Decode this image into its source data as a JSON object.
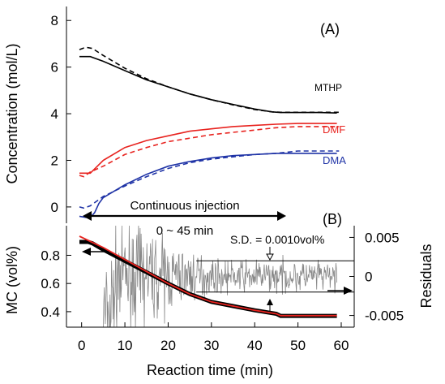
{
  "chart_data": [
    {
      "panel_label": "(A)",
      "type": "line",
      "ylabel": "Concentration (mol/L)",
      "ylim": [
        -0.7,
        8.6
      ],
      "xlim": [
        -3.5,
        63
      ],
      "yticks": [
        0,
        2,
        4,
        6,
        8
      ],
      "colors": {
        "MTHP": "#000000",
        "DMF": "#e8231f",
        "DMA": "#1f33a6"
      },
      "series": [
        {
          "name": "MTHP",
          "style": "solid",
          "x": [
            -0.5,
            2,
            5,
            10,
            15,
            20,
            25,
            30,
            35,
            40,
            44,
            46,
            50,
            55,
            59
          ],
          "y": [
            6.45,
            6.45,
            6.25,
            5.85,
            5.45,
            5.15,
            4.85,
            4.6,
            4.4,
            4.2,
            4.08,
            4.05,
            4.05,
            4.05,
            4.03
          ]
        },
        {
          "name": "MTHP",
          "style": "dashed",
          "x": [
            -0.5,
            1,
            2.5,
            5,
            10,
            15,
            20,
            25,
            30,
            35,
            40,
            44,
            46,
            50,
            55,
            59.5
          ],
          "y": [
            6.75,
            6.85,
            6.8,
            6.5,
            5.95,
            5.5,
            5.15,
            4.85,
            4.6,
            4.38,
            4.18,
            4.08,
            4.06,
            4.06,
            4.06,
            4.06
          ]
        },
        {
          "name": "DMF",
          "style": "solid",
          "x": [
            -0.5,
            2,
            5,
            10,
            15,
            20,
            25,
            30,
            35,
            40,
            45,
            50,
            55,
            59
          ],
          "y": [
            1.45,
            1.45,
            2.0,
            2.55,
            2.85,
            3.05,
            3.25,
            3.35,
            3.45,
            3.5,
            3.55,
            3.58,
            3.58,
            3.58
          ]
        },
        {
          "name": "DMF",
          "style": "dashed",
          "x": [
            -0.5,
            0.5,
            2,
            5,
            10,
            15,
            20,
            25,
            30,
            35,
            40,
            45,
            50,
            55,
            59.5
          ],
          "y": [
            1.35,
            1.3,
            1.5,
            1.75,
            2.25,
            2.55,
            2.8,
            2.95,
            3.1,
            3.2,
            3.3,
            3.4,
            3.45,
            3.45,
            3.45
          ]
        },
        {
          "name": "DMA",
          "style": "solid",
          "x": [
            -0.5,
            1,
            2,
            3,
            4,
            5,
            10,
            15,
            20,
            25,
            30,
            35,
            40,
            45,
            50,
            55,
            59
          ],
          "y": [
            -0.4,
            -0.45,
            -0.45,
            -0.25,
            0.15,
            0.4,
            0.95,
            1.4,
            1.75,
            1.95,
            2.1,
            2.2,
            2.25,
            2.3,
            2.3,
            2.3,
            2.3
          ]
        },
        {
          "name": "DMA",
          "style": "dashed",
          "x": [
            -0.5,
            0.5,
            2,
            5,
            10,
            15,
            20,
            25,
            30,
            35,
            40,
            45,
            50,
            55,
            59.5
          ],
          "y": [
            0.0,
            -0.05,
            0.05,
            0.45,
            0.9,
            1.3,
            1.65,
            1.9,
            2.05,
            2.15,
            2.25,
            2.3,
            2.4,
            2.4,
            2.4
          ]
        }
      ],
      "annotations": [
        "Continuous injection",
        "0 ~ 45 min"
      ],
      "injection_interval": [
        0,
        45
      ]
    },
    {
      "panel_label": "(B)",
      "type": "line",
      "xlabel": "Reaction time (min)",
      "ylabel": "MC (vol%)",
      "ylabel_right": "Residuals",
      "xlim": [
        -3.5,
        63
      ],
      "ylim": [
        0.29,
        1.01
      ],
      "yticks": [
        0.4,
        0.6,
        0.8
      ],
      "xticks": [
        0,
        10,
        20,
        30,
        40,
        50,
        60
      ],
      "ylim_right": [
        -0.0065,
        0.0065
      ],
      "yticks_right": [
        -0.005,
        0,
        0.005
      ],
      "ytick_labels_right": [
        "-0.005",
        "0",
        "0.005"
      ],
      "colors": {
        "measured": "#000000",
        "fit": "#e8231f",
        "residuals": "#888888"
      },
      "series": [
        {
          "style": "solid-thick",
          "x": [
            -0.5,
            1.5,
            2.5,
            5,
            10,
            15,
            20,
            25,
            30,
            35,
            40,
            45,
            46,
            50,
            55,
            59
          ],
          "y": [
            0.895,
            0.895,
            0.885,
            0.84,
            0.76,
            0.68,
            0.6,
            0.525,
            0.47,
            0.44,
            0.41,
            0.385,
            0.37,
            0.37,
            0.37,
            0.37
          ]
        },
        {
          "style": "solid",
          "x": [
            -0.5,
            5,
            10,
            15,
            20,
            25,
            30,
            35,
            40,
            45,
            46,
            50,
            55,
            59
          ],
          "y": [
            0.935,
            0.855,
            0.77,
            0.685,
            0.6,
            0.525,
            0.47,
            0.44,
            0.41,
            0.385,
            0.372,
            0.372,
            0.372,
            0.372
          ]
        },
        {
          "style": "noisy",
          "axis": "right",
          "x_range": [
            5,
            59
          ],
          "noise_sd": 0.001
        }
      ],
      "sd_band": [
        -0.002,
        0.002
      ],
      "sd_label": "S.D. = 0.0010vol%"
    }
  ]
}
